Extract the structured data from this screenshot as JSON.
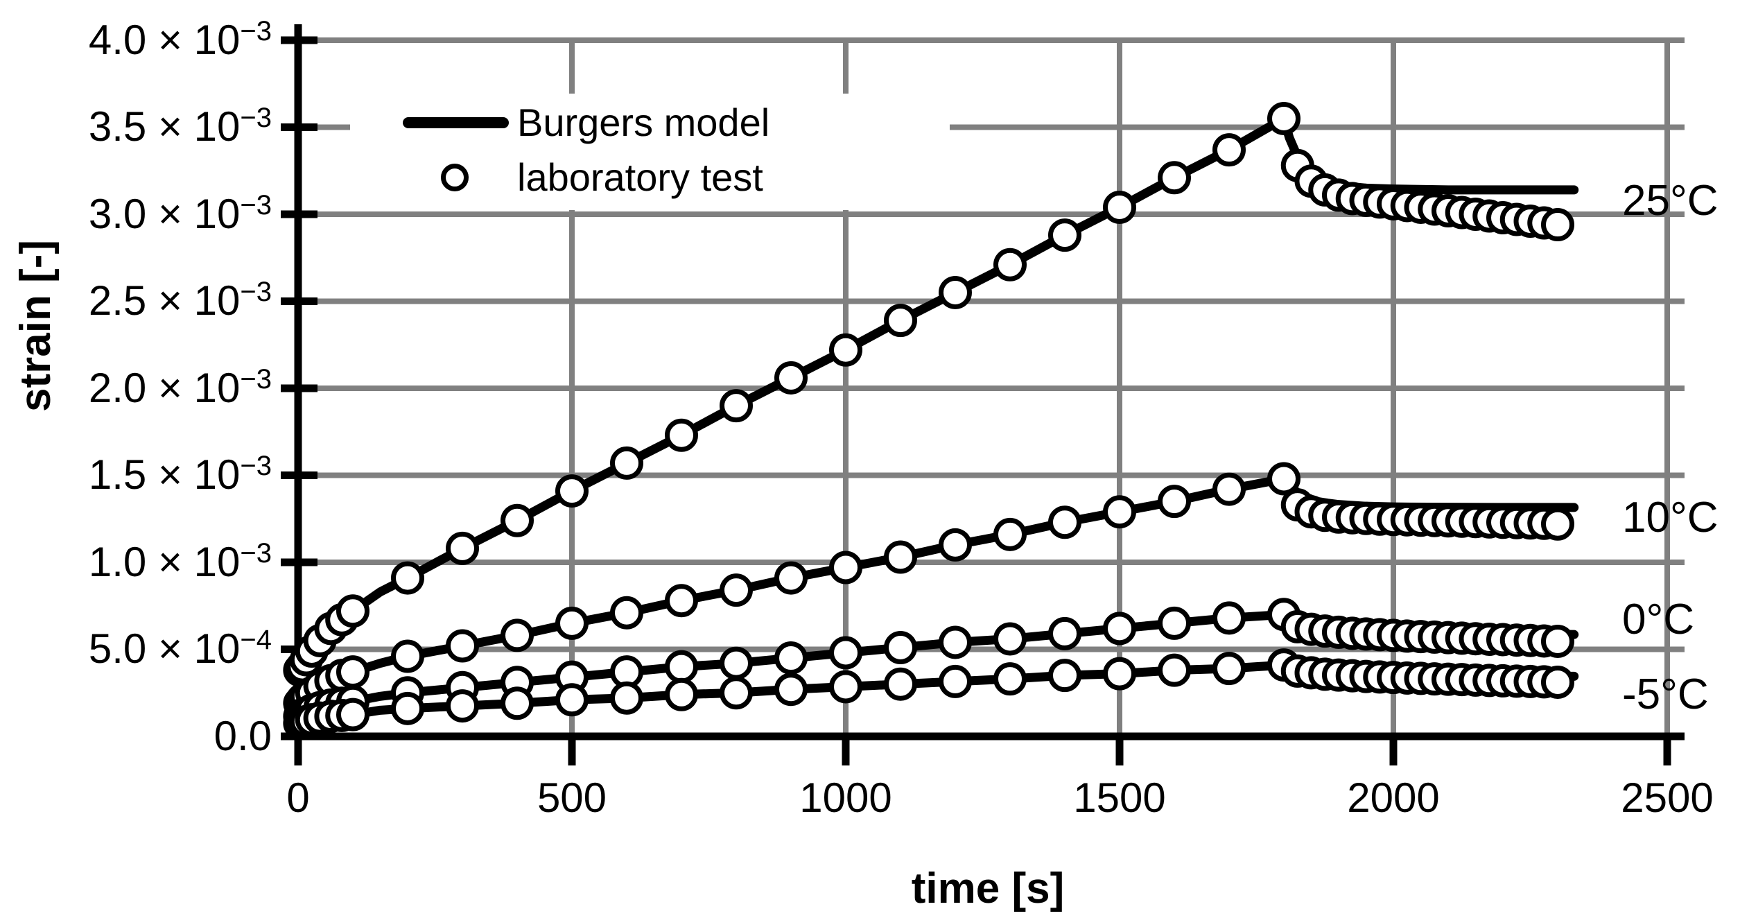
{
  "chart_data": {
    "type": "line",
    "title": "",
    "xlabel": "time [s]",
    "ylabel": "strain [-]",
    "xlim": [
      0,
      2500
    ],
    "ylim": [
      0,
      0.004
    ],
    "grid": true,
    "legend_position": "top-left-inside",
    "strain_units_note": "strain values below are in units of 1e-3 (dimensionless strain)",
    "legend": [
      {
        "label": "Burgers model",
        "marker": "thick-black-line"
      },
      {
        "label": "laboratory test",
        "marker": "open-circle"
      }
    ],
    "x_ticks": [
      0,
      500,
      1000,
      1500,
      2000,
      2500
    ],
    "y_ticks": [
      {
        "value_e3": 4.0,
        "mantissa": "4.0 × 10",
        "exponent": "−3"
      },
      {
        "value_e3": 3.5,
        "mantissa": "3.5 × 10",
        "exponent": "−3"
      },
      {
        "value_e3": 3.0,
        "mantissa": "3.0 × 10",
        "exponent": "−3"
      },
      {
        "value_e3": 2.5,
        "mantissa": "2.5 × 10",
        "exponent": "−3"
      },
      {
        "value_e3": 2.0,
        "mantissa": "2.0 × 10",
        "exponent": "−3"
      },
      {
        "value_e3": 1.5,
        "mantissa": "1.5 × 10",
        "exponent": "−3"
      },
      {
        "value_e3": 1.0,
        "mantissa": "1.0 × 10",
        "exponent": "−3"
      },
      {
        "value_e3": 0.5,
        "mantissa": "5.0 × 10",
        "exponent": "−4"
      },
      {
        "value_e3": 0.0,
        "mantissa": "0.0",
        "exponent": ""
      }
    ],
    "time_s": {
      "model": [
        0,
        10,
        25,
        50,
        75,
        100,
        150,
        200,
        300,
        400,
        500,
        600,
        700,
        800,
        900,
        1000,
        1100,
        1200,
        1300,
        1400,
        1500,
        1600,
        1700,
        1800,
        1810,
        1825,
        1840,
        1860,
        1880,
        1900,
        1950,
        2000,
        2100,
        2200,
        2330
      ],
      "lab": [
        3,
        8,
        15,
        25,
        40,
        60,
        80,
        100,
        200,
        300,
        400,
        500,
        600,
        700,
        800,
        900,
        1000,
        1100,
        1200,
        1300,
        1400,
        1500,
        1600,
        1700,
        1800,
        1825,
        1850,
        1875,
        1900,
        1925,
        1950,
        1975,
        2000,
        2025,
        2050,
        2075,
        2100,
        2125,
        2150,
        2175,
        2200,
        2225,
        2250,
        2275,
        2300
      ]
    },
    "series": [
      {
        "label": "25°C",
        "label_center_y_e3": 3.07,
        "model_strain_e3": [
          0.36,
          0.42,
          0.49,
          0.59,
          0.66,
          0.72,
          0.83,
          0.91,
          1.08,
          1.24,
          1.41,
          1.57,
          1.73,
          1.9,
          2.06,
          2.22,
          2.39,
          2.55,
          2.71,
          2.88,
          3.04,
          3.21,
          3.37,
          3.55,
          3.44,
          3.33,
          3.27,
          3.21,
          3.18,
          3.165,
          3.15,
          3.145,
          3.14,
          3.14,
          3.14
        ],
        "lab_strain_e3": [
          0.38,
          0.4,
          0.44,
          0.49,
          0.55,
          0.62,
          0.67,
          0.72,
          0.91,
          1.08,
          1.24,
          1.41,
          1.57,
          1.73,
          1.9,
          2.06,
          2.22,
          2.39,
          2.55,
          2.71,
          2.88,
          3.04,
          3.21,
          3.37,
          3.55,
          3.28,
          3.19,
          3.14,
          3.11,
          3.09,
          3.08,
          3.07,
          3.06,
          3.05,
          3.04,
          3.03,
          3.02,
          3.01,
          3.0,
          2.99,
          2.98,
          2.97,
          2.96,
          2.95,
          2.94
        ]
      },
      {
        "label": "10°C",
        "label_center_y_e3": 1.255,
        "model_strain_e3": [
          0.18,
          0.21,
          0.25,
          0.31,
          0.34,
          0.37,
          0.42,
          0.46,
          0.52,
          0.58,
          0.65,
          0.71,
          0.78,
          0.84,
          0.91,
          0.97,
          1.03,
          1.1,
          1.16,
          1.23,
          1.29,
          1.35,
          1.42,
          1.48,
          1.44,
          1.4,
          1.375,
          1.35,
          1.34,
          1.332,
          1.322,
          1.318,
          1.316,
          1.315,
          1.315
        ],
        "lab_strain_e3": [
          0.19,
          0.21,
          0.23,
          0.25,
          0.29,
          0.32,
          0.35,
          0.37,
          0.46,
          0.52,
          0.58,
          0.65,
          0.71,
          0.78,
          0.84,
          0.91,
          0.97,
          1.03,
          1.1,
          1.16,
          1.23,
          1.29,
          1.35,
          1.42,
          1.48,
          1.33,
          1.29,
          1.27,
          1.26,
          1.256,
          1.252,
          1.248,
          1.246,
          1.244,
          1.242,
          1.24,
          1.238,
          1.236,
          1.234,
          1.232,
          1.23,
          1.228,
          1.226,
          1.224,
          1.22
        ]
      },
      {
        "label": "0°C",
        "label_center_y_e3": 0.67,
        "model_strain_e3": [
          0.11,
          0.13,
          0.15,
          0.17,
          0.185,
          0.2,
          0.23,
          0.25,
          0.28,
          0.31,
          0.34,
          0.37,
          0.4,
          0.42,
          0.45,
          0.48,
          0.51,
          0.54,
          0.56,
          0.59,
          0.62,
          0.65,
          0.68,
          0.7,
          0.682,
          0.662,
          0.645,
          0.625,
          0.612,
          0.603,
          0.592,
          0.588,
          0.585,
          0.585,
          0.585
        ],
        "lab_strain_e3": [
          0.115,
          0.125,
          0.135,
          0.15,
          0.165,
          0.18,
          0.19,
          0.2,
          0.25,
          0.28,
          0.31,
          0.34,
          0.37,
          0.4,
          0.42,
          0.45,
          0.48,
          0.51,
          0.54,
          0.56,
          0.59,
          0.62,
          0.65,
          0.68,
          0.7,
          0.63,
          0.615,
          0.605,
          0.598,
          0.592,
          0.588,
          0.584,
          0.58,
          0.576,
          0.573,
          0.57,
          0.567,
          0.564,
          0.561,
          0.558,
          0.556,
          0.553,
          0.551,
          0.548,
          0.546
        ]
      },
      {
        "label": "-5°C",
        "label_center_y_e3": 0.24,
        "model_strain_e3": [
          0.07,
          0.085,
          0.1,
          0.11,
          0.12,
          0.125,
          0.15,
          0.16,
          0.175,
          0.19,
          0.21,
          0.22,
          0.24,
          0.25,
          0.27,
          0.285,
          0.3,
          0.315,
          0.33,
          0.35,
          0.36,
          0.38,
          0.39,
          0.41,
          0.4,
          0.388,
          0.377,
          0.366,
          0.358,
          0.353,
          0.348,
          0.346,
          0.345,
          0.345,
          0.345
        ],
        "lab_strain_e3": [
          0.075,
          0.08,
          0.085,
          0.095,
          0.105,
          0.115,
          0.12,
          0.125,
          0.16,
          0.175,
          0.19,
          0.21,
          0.22,
          0.24,
          0.25,
          0.27,
          0.285,
          0.3,
          0.315,
          0.33,
          0.35,
          0.36,
          0.38,
          0.39,
          0.41,
          0.375,
          0.365,
          0.357,
          0.352,
          0.348,
          0.344,
          0.341,
          0.338,
          0.335,
          0.333,
          0.33,
          0.328,
          0.326,
          0.323,
          0.321,
          0.319,
          0.317,
          0.315,
          0.313,
          0.311
        ]
      }
    ],
    "annotations": {
      "load_duration_s": 1800,
      "test_end_s": 2300
    },
    "colors": {
      "curves": "#000000",
      "grid": "#808080",
      "background": "#ffffff",
      "text": "#000000"
    }
  }
}
